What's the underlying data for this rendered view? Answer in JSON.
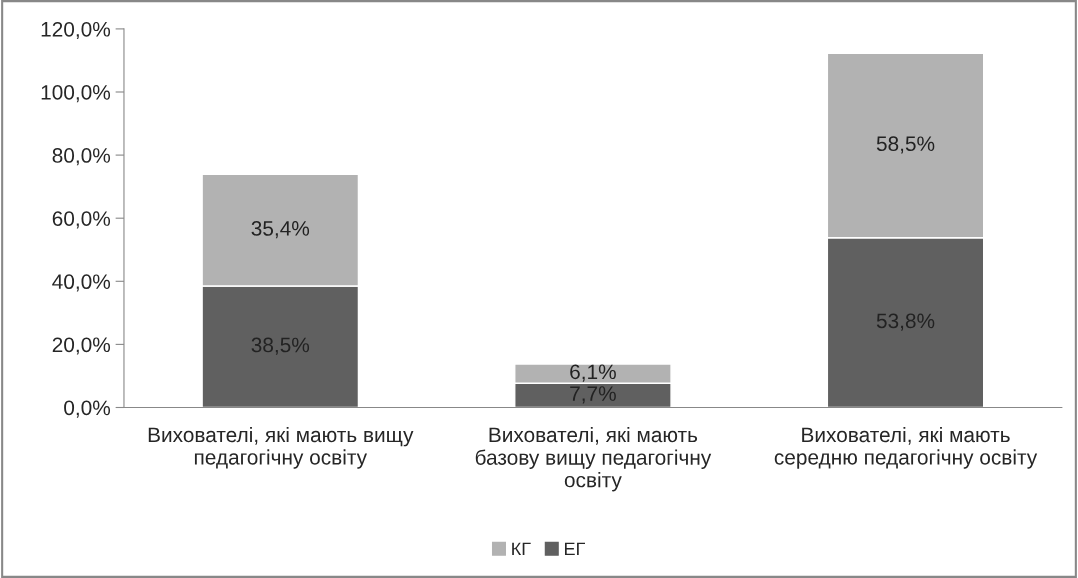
{
  "chart_data": {
    "type": "bar",
    "stacked": true,
    "categories": [
      "Вихователі, які мають вищу педагогічну освіту",
      "Вихователі, які мають базову вищу педагогічну освіту",
      "Вихователі, які мають середню педагогічну освіту"
    ],
    "series": [
      {
        "name": "ЕГ",
        "color": "#606060",
        "values": [
          38.5,
          7.7,
          53.8
        ],
        "value_labels": [
          "38,5%",
          "7,7%",
          "53,8%"
        ]
      },
      {
        "name": "КГ",
        "color": "#b2b2b2",
        "values": [
          35.4,
          6.1,
          58.5
        ],
        "value_labels": [
          "35,4%",
          "6,1%",
          "58,5%"
        ]
      }
    ],
    "ylim": [
      0,
      120
    ],
    "yticks": [
      {
        "value": 0,
        "label": "0,0%"
      },
      {
        "value": 20,
        "label": "20,0%"
      },
      {
        "value": 40,
        "label": "40,0%"
      },
      {
        "value": 60,
        "label": "60,0%"
      },
      {
        "value": 80,
        "label": "80,0%"
      },
      {
        "value": 100,
        "label": "100,0%"
      },
      {
        "value": 120,
        "label": "120,0%"
      }
    ],
    "grid": false,
    "legend": "bottom"
  }
}
